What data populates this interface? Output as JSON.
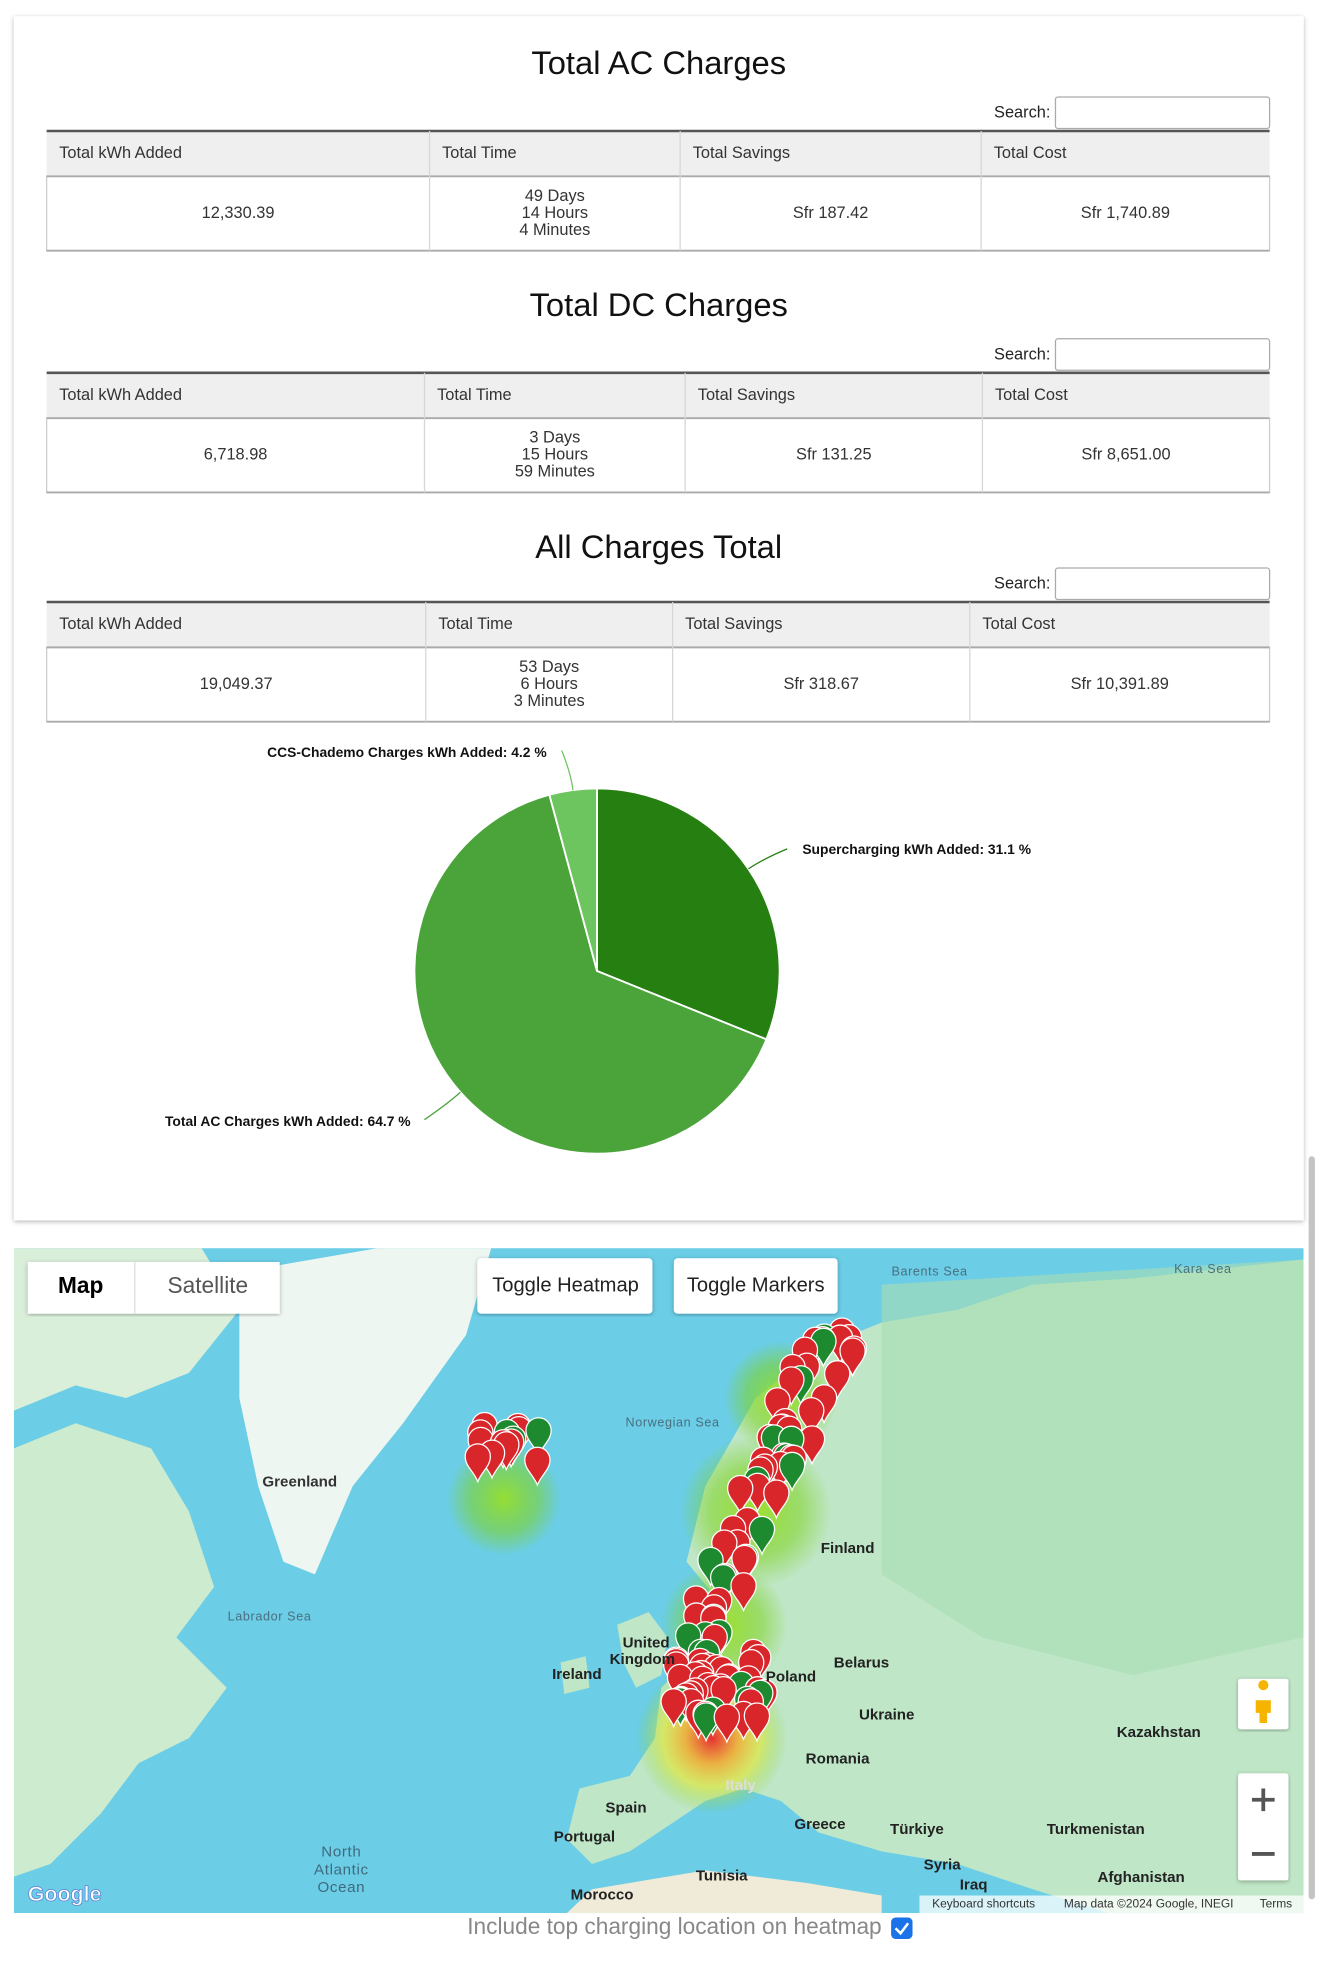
{
  "tables": [
    {
      "title": "Total AC Charges",
      "search_label": "Search:",
      "headers": [
        "Total kWh Added",
        "Total Time",
        "Total Savings",
        "Total Cost"
      ],
      "row": [
        "12,330.39",
        [
          "49 Days",
          "14 Hours",
          "4 Minutes"
        ],
        "Sfr 187.42",
        "Sfr 1,740.89"
      ]
    },
    {
      "title": "Total DC Charges",
      "search_label": "Search:",
      "headers": [
        "Total kWh Added",
        "Total Time",
        "Total Savings",
        "Total Cost"
      ],
      "row": [
        "6,718.98",
        [
          "3 Days",
          "15 Hours",
          "59 Minutes"
        ],
        "Sfr 131.25",
        "Sfr 8,651.00"
      ]
    },
    {
      "title": "All Charges Total",
      "search_label": "Search:",
      "headers": [
        "Total kWh Added",
        "Total Time",
        "Total Savings",
        "Total Cost"
      ],
      "row": [
        "19,049.37",
        [
          "53 Days",
          "6 Hours",
          "3 Minutes"
        ],
        "Sfr 318.67",
        "Sfr 10,391.89"
      ]
    }
  ],
  "chart_data": {
    "type": "pie",
    "labels": [
      "Supercharging kWh Added: 31.1 %",
      "Total AC Charges kWh Added: 64.7 %",
      "CCS-Chademo Charges kWh Added: 4.2 %"
    ],
    "values": [
      31.1,
      64.7,
      4.2
    ],
    "colors": [
      "#267f11",
      "#4aa43a",
      "#6cc55e"
    ]
  },
  "map": {
    "buttons": [
      "Map",
      "Satellite",
      "Toggle Heatmap",
      "Toggle Markers"
    ],
    "labels": [
      "Greenland",
      "Labrador Sea",
      "Norwegian Sea",
      "Barents Sea",
      "Kara Sea",
      "Finland",
      "United",
      "Kingdom",
      "Ireland",
      "Poland",
      "Belarus",
      "Ukraine",
      "Kazakhstan",
      "Romania",
      "Spain",
      "Portugal",
      "Italy",
      "Greece",
      "Türkiye",
      "Turkmenistan",
      "Syria",
      "Iraq",
      "Afghanistan",
      "Tunisia",
      "Morocco",
      "North",
      "Atlantic",
      "Ocean"
    ],
    "logo": "Google",
    "attribution": [
      "Keyboard shortcuts",
      "Map data ©2024 Google, INEGI",
      "Terms"
    ]
  },
  "footer": {
    "checkbox_label": "Include top charging location on heatmap",
    "checked": true
  }
}
